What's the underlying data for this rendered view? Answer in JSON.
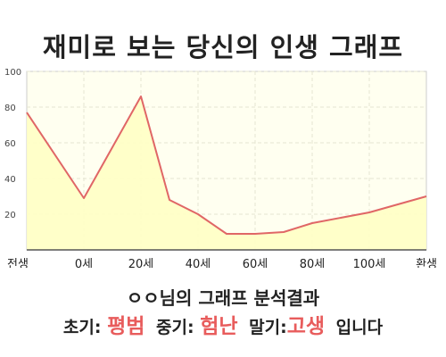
{
  "title": "재미로 보는 당신의 인생 그래프",
  "chart_data": {
    "type": "area",
    "x_categories": [
      "전생",
      "0세",
      "20세",
      "40세",
      "60세",
      "80세",
      "100세",
      "환생"
    ],
    "points": [
      {
        "x": "전생",
        "y": 77
      },
      {
        "x": "0세",
        "y": 29
      },
      {
        "x": "20세",
        "y": 86
      },
      {
        "x": "30세",
        "y": 28
      },
      {
        "x": "40세",
        "y": 20
      },
      {
        "x": "50세",
        "y": 9
      },
      {
        "x": "60세",
        "y": 9
      },
      {
        "x": "70세",
        "y": 10
      },
      {
        "x": "80세",
        "y": 15
      },
      {
        "x": "100세",
        "y": 21
      },
      {
        "x": "환생",
        "y": 30
      }
    ],
    "y_ticks": [
      20,
      40,
      60,
      80,
      100
    ],
    "ylim": [
      0,
      100
    ],
    "grid": true,
    "colors": {
      "line": "#e06666",
      "fill": "#ffffc4",
      "plot_bg": "#fffff0",
      "grid": "#e6e6d2"
    }
  },
  "result": {
    "title": "ㅇㅇ님의 그래프 분석결과",
    "early_label": "초기:",
    "early_value": "평범",
    "mid_label": "중기:",
    "mid_value": "험난",
    "late_label": "말기:",
    "late_value": "고생",
    "suffix": "입니다"
  }
}
